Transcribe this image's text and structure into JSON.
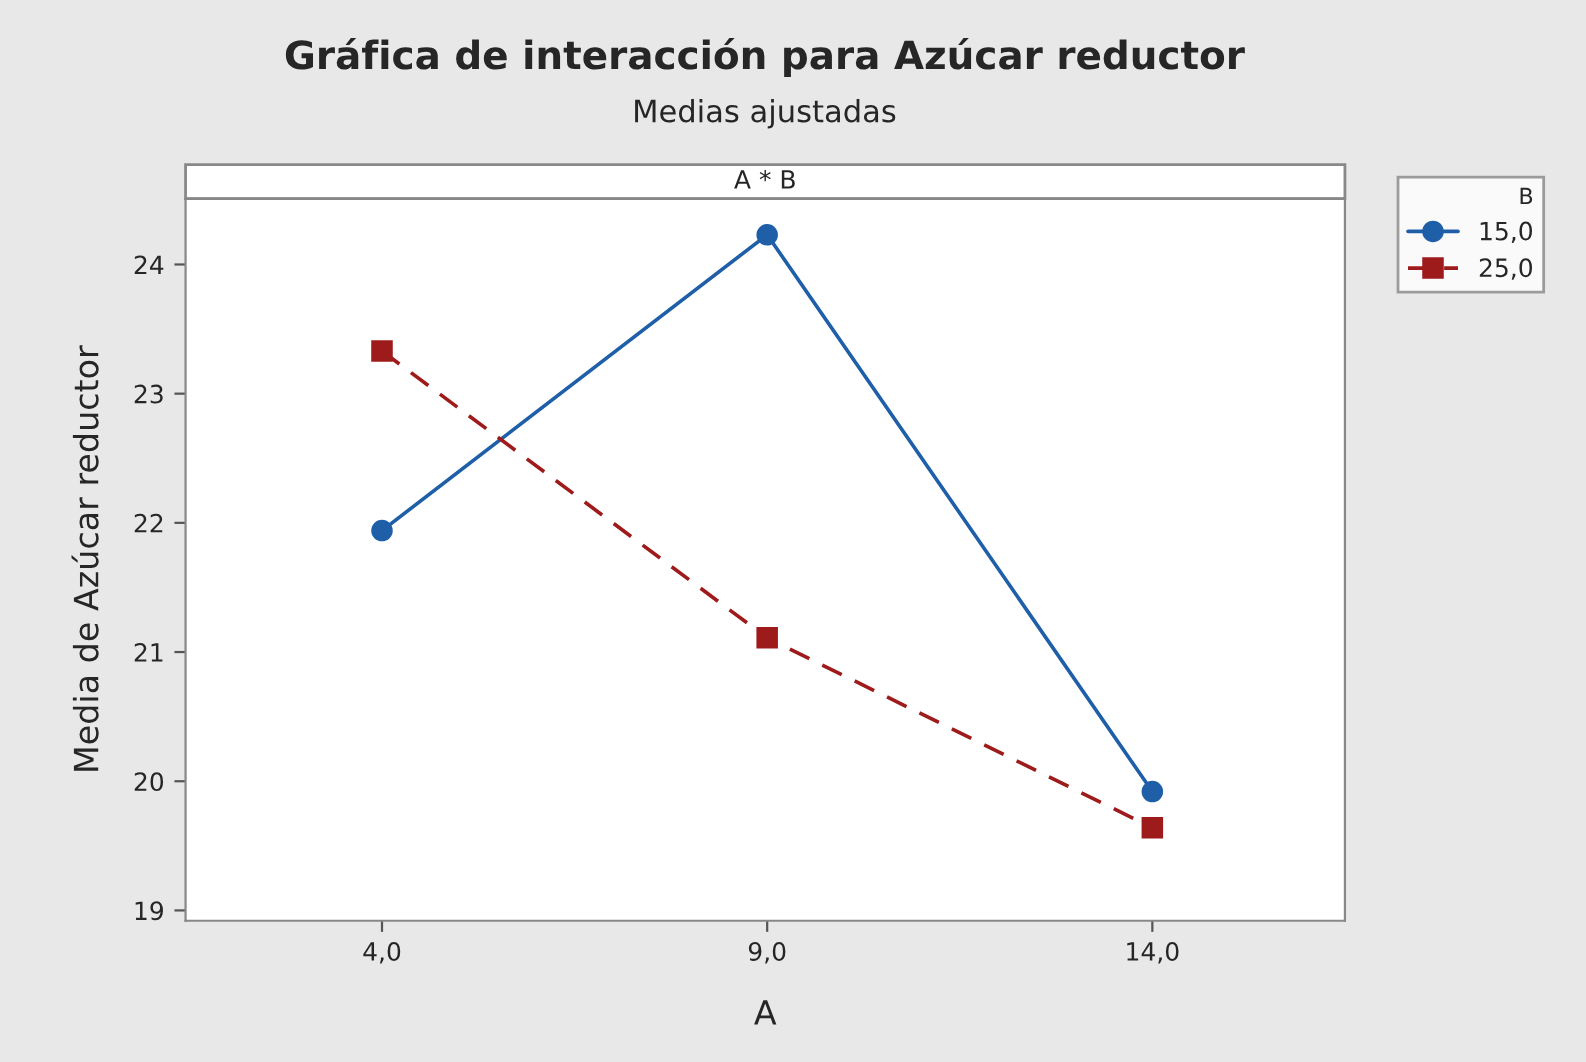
{
  "chart_data": {
    "type": "line",
    "title": "Gráfica de interacción para Azúcar reductor",
    "subtitle": "Medias ajustadas",
    "xlabel": "A",
    "ylabel": "Media de Azúcar reductor",
    "legend_title": "B",
    "annotations": [
      "A * B"
    ],
    "categories": [
      "4,0",
      "9,0",
      "14,0"
    ],
    "series": [
      {
        "name": "15,0",
        "color": "#1f5fa8",
        "values": [
          21.94,
          24.23,
          19.92
        ],
        "marker": "circle",
        "line_style": "solid"
      },
      {
        "name": "25,0",
        "color": "#9e1b1b",
        "values": [
          23.33,
          21.11,
          19.64
        ],
        "marker": "square",
        "line_style": "dashed"
      }
    ],
    "ylim": [
      18.92,
      24.51
    ],
    "yticks": [
      19,
      20,
      21,
      22,
      23,
      24
    ],
    "grid": false,
    "legend": "right"
  }
}
